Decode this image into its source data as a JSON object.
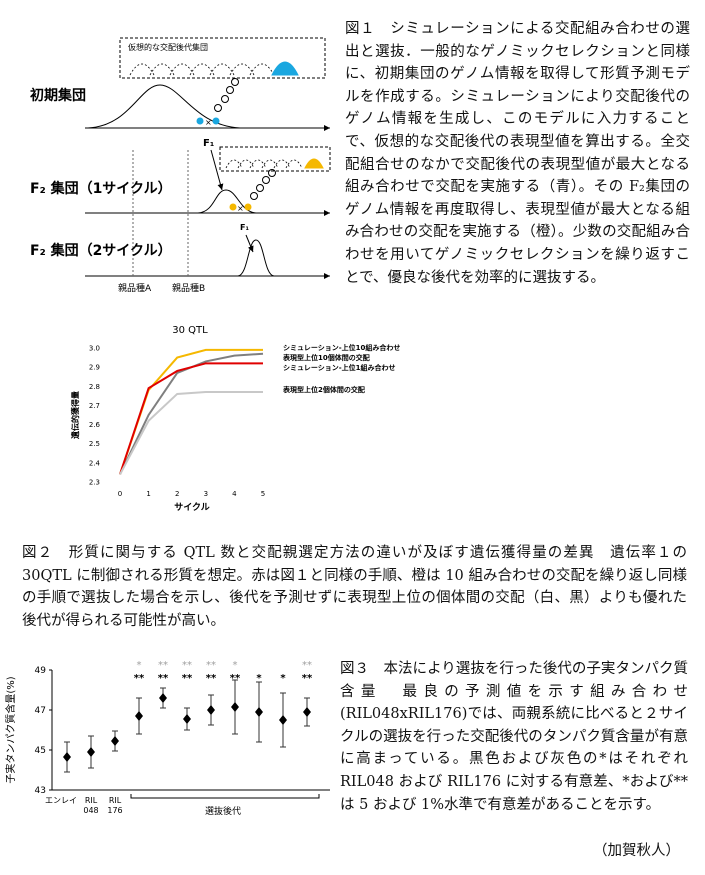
{
  "figure1": {
    "box_label": "仮想的な交配後代集団",
    "initial": "初期集団",
    "f1_a": "F₁",
    "f2_cycle1": "F₂ 集団（1サイクル）",
    "f1_b": "F₁",
    "f2_cycle2": "F₂ 集団（2サイクル）",
    "parent_a": "親品種A",
    "parent_b": "親品種B",
    "cross_a": "×",
    "cross_b": "×"
  },
  "captions": {
    "fig1": "図１　シミュレーションによる交配組み合わせの選出と選抜．一般的なゲノミックセレクションと同様に、初期集団のゲノム情報を取得して形質予測モデルを作成する。シミュレーションにより交配後代のゲノム情報を生成し、このモデルに入力することで、仮想的な交配後代の表現型値を算出する。全交配組合せのなかで交配後代の表現型値が最大となる組み合わせで交配を実施する（青）。その F₂集団のゲノム情報を再度取得し、表現型値が最大となる組み合わせの交配を実施する（橙）。少数の交配組み合わせを用いてゲノミックセレクションを繰り返すことで、優良な後代を効率的に選抜する。",
    "fig2": "図２　形質に関与する QTL 数と交配親選定方法の違いが及ぼす遺伝獲得量の差異　遺伝率１の 30QTL に制御される形質を想定。赤は図１と同様の手順、橙は 10 組み合わせの交配を繰り返し同様の手順で選抜した場合を示し、後代を予測せずに表現型上位の個体間の交配（白、黒）よりも優れた後代が得られる可能性が高い。",
    "fig3": "図３　本法により選抜を行った後代の子実タンパク質含量　最良の予測値を示す組み合わせ(RIL048xRIL176)では、両親系統に比べると２サイクルの選抜を行った交配後代のタンパク質含量が有意に高まっている。黒色および灰色の*はそれぞれ RIL048 および RIL176 に対する有意差、*および**は 5 および 1%水準で有意差があることを示す。"
  },
  "author": "（加賀秋人）",
  "chart_data": [
    {
      "type": "line",
      "title": "30 QTL",
      "x_label": "サイクル",
      "y_label": "遺伝的獲得量",
      "x": [
        0,
        1,
        2,
        3,
        4,
        5
      ],
      "xlim": [
        0,
        5
      ],
      "xticks": [
        0,
        1,
        2,
        3,
        4,
        5
      ],
      "ylim": [
        2.3,
        3.0
      ],
      "yticks": [
        2.3,
        2.4,
        2.5,
        2.6,
        2.7,
        2.8,
        2.9,
        {
          "value": 3.0,
          "label": "3.0"
        }
      ],
      "series": [
        {
          "name": "シミュレーション-上位10組み合わせ",
          "color": "#f5b800",
          "values": [
            2.34,
            2.78,
            2.95,
            2.99,
            2.99,
            2.99
          ]
        },
        {
          "name": "表現型上位10個体間の交配",
          "color": "#7f7f7f",
          "values": [
            2.34,
            2.65,
            2.87,
            2.93,
            2.96,
            2.97
          ]
        },
        {
          "name": "シミュレーション-上位1組み合わせ",
          "color": "#e00000",
          "values": [
            2.34,
            2.79,
            2.88,
            2.92,
            2.92,
            2.92
          ]
        },
        {
          "name": "表現型上位2個体間の交配",
          "color": "#c8c8c8",
          "values": [
            2.34,
            2.62,
            2.76,
            2.77,
            2.77,
            2.77
          ]
        }
      ]
    },
    {
      "type": "errorbar",
      "y_label": "子実タンパク質含量(%)",
      "group_label": "選抜後代",
      "categories": [
        "エンレイ",
        "RIL 048",
        "RIL 176",
        null,
        null,
        null,
        null,
        null,
        null,
        null,
        null
      ],
      "values": [
        44.65,
        44.9,
        45.45,
        46.7,
        47.6,
        46.55,
        47.0,
        47.15,
        46.9,
        46.5,
        46.9
      ],
      "errors": [
        0.75,
        0.8,
        0.5,
        0.9,
        0.5,
        0.55,
        0.75,
        1.35,
        1.5,
        1.35,
        0.7
      ],
      "sig_ril048": [
        null,
        null,
        null,
        "**",
        "**",
        "**",
        "**",
        "**",
        "*",
        "*",
        "**"
      ],
      "sig_ril176": [
        null,
        null,
        null,
        "*",
        "**",
        "**",
        "**",
        "*",
        null,
        null,
        "**"
      ],
      "sig_colors": {
        "ril048": "#000000",
        "ril176": "#a0a0a0"
      },
      "ylim": [
        43,
        49
      ],
      "yticks": [
        43,
        45,
        47,
        49
      ],
      "color": "#000000"
    }
  ]
}
